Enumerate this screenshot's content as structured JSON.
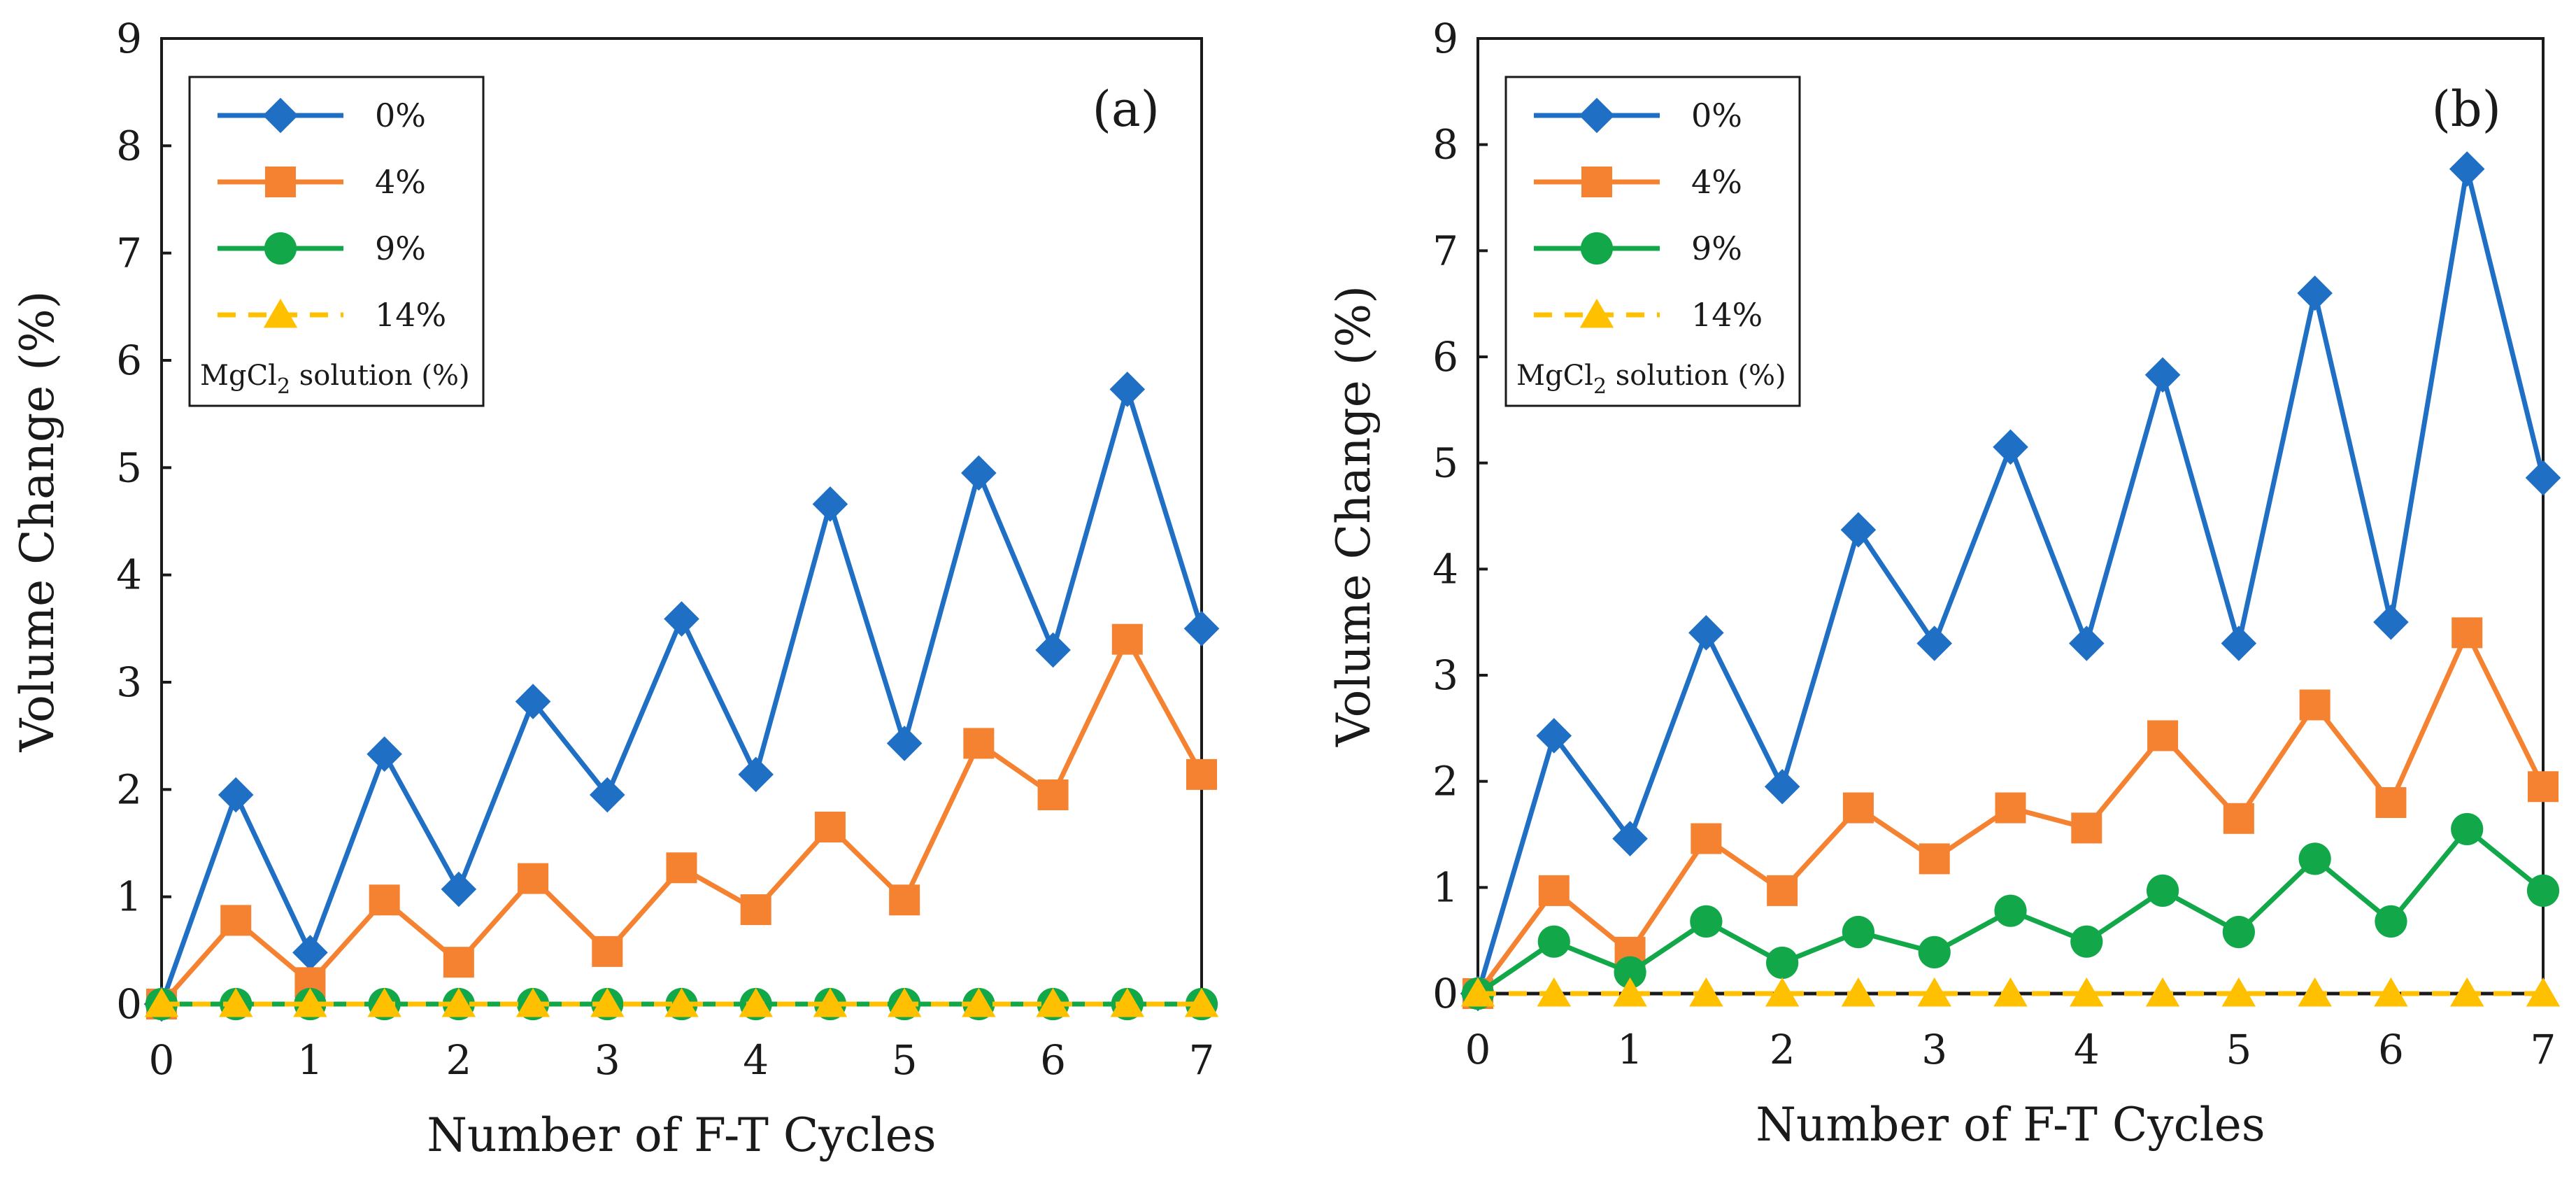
{
  "chart_data": [
    {
      "type": "line",
      "panel": "(a)",
      "xlabel": "Number of F-T Cycles",
      "ylabel": "Volume Change (%)",
      "xlim": [
        0,
        7
      ],
      "ylim": [
        0,
        9
      ],
      "xticks": [
        "0",
        "1",
        "2",
        "3",
        "4",
        "5",
        "6",
        "7"
      ],
      "yticks": [
        "0",
        "1",
        "2",
        "3",
        "4",
        "5",
        "6",
        "7",
        "8",
        "9"
      ],
      "legend_title": {
        "prefix": "MgCl",
        "subscript": "2",
        "suffix": " solution (%)"
      },
      "legend_position": "top-left",
      "x": [
        0,
        0.5,
        1,
        1.5,
        2,
        2.5,
        3,
        3.5,
        4,
        4.5,
        5,
        5.5,
        6,
        6.5,
        7
      ],
      "series": [
        {
          "name": "0%",
          "color": "#1F6FC5",
          "marker": "diamond",
          "dash": "solid",
          "values": [
            0,
            1.95,
            0.48,
            2.33,
            1.07,
            2.82,
            1.95,
            3.59,
            2.14,
            4.66,
            2.43,
            4.95,
            3.3,
            5.73,
            3.5
          ]
        },
        {
          "name": "4%",
          "color": "#F58231",
          "marker": "square",
          "dash": "solid",
          "values": [
            0,
            0.78,
            0.2,
            0.97,
            0.39,
            1.17,
            0.49,
            1.27,
            0.88,
            1.65,
            0.97,
            2.43,
            1.95,
            3.4,
            2.14
          ]
        },
        {
          "name": "9%",
          "color": "#12A84A",
          "marker": "circle",
          "dash": "solid",
          "values": [
            0,
            0,
            0,
            0,
            0,
            0,
            0,
            0,
            0,
            0,
            0,
            0,
            0,
            0,
            0
          ]
        },
        {
          "name": "14%",
          "color": "#FFC000",
          "marker": "triangle",
          "dash": "dashed",
          "values": [
            0,
            0,
            0,
            0,
            0,
            0,
            0,
            0,
            0,
            0,
            0,
            0,
            0,
            0,
            0
          ]
        }
      ]
    },
    {
      "type": "line",
      "panel": "(b)",
      "xlabel": "Number of F-T Cycles",
      "ylabel": "Volume Change (%)",
      "xlim": [
        0,
        7
      ],
      "ylim": [
        0,
        9
      ],
      "xticks": [
        "0",
        "1",
        "2",
        "3",
        "4",
        "5",
        "6",
        "7"
      ],
      "yticks": [
        "0",
        "1",
        "2",
        "3",
        "4",
        "5",
        "6",
        "7",
        "8",
        "9"
      ],
      "legend_title": {
        "prefix": "MgCl",
        "subscript": "2",
        "suffix": " solution (%)"
      },
      "legend_position": "top-left",
      "x": [
        0,
        0.5,
        1,
        1.5,
        2,
        2.5,
        3,
        3.5,
        4,
        4.5,
        5,
        5.5,
        6,
        6.5,
        7
      ],
      "series": [
        {
          "name": "0%",
          "color": "#1F6FC5",
          "marker": "diamond",
          "dash": "solid",
          "values": [
            0,
            2.43,
            1.46,
            3.4,
            1.95,
            4.37,
            3.3,
            5.15,
            3.3,
            5.83,
            3.3,
            6.6,
            3.5,
            7.77,
            4.86
          ]
        },
        {
          "name": "4%",
          "color": "#F58231",
          "marker": "square",
          "dash": "solid",
          "values": [
            0,
            0.97,
            0.39,
            1.46,
            0.97,
            1.75,
            1.27,
            1.75,
            1.56,
            2.43,
            1.65,
            2.72,
            1.8,
            3.4,
            1.95
          ]
        },
        {
          "name": "9%",
          "color": "#12A84A",
          "marker": "circle",
          "dash": "solid",
          "values": [
            0,
            0.49,
            0.2,
            0.68,
            0.29,
            0.58,
            0.39,
            0.78,
            0.49,
            0.97,
            0.58,
            1.27,
            0.68,
            1.55,
            0.97
          ]
        },
        {
          "name": "14%",
          "color": "#FFC000",
          "marker": "triangle",
          "dash": "dashed",
          "values": [
            0,
            0,
            0,
            0,
            0,
            0,
            0,
            0,
            0,
            0,
            0,
            0,
            0,
            0,
            0
          ]
        }
      ]
    }
  ]
}
